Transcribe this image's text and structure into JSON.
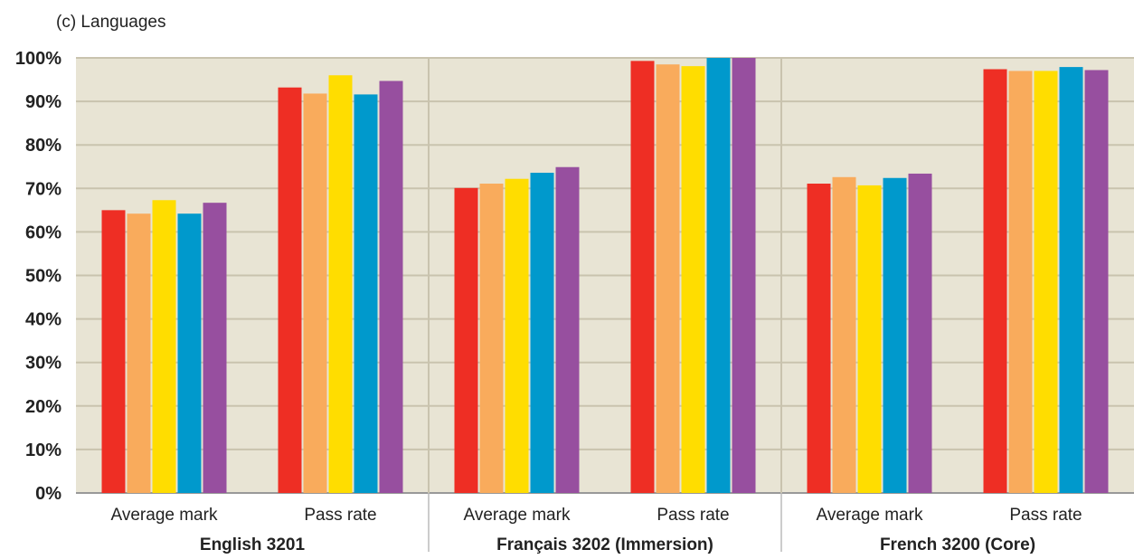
{
  "chart_data": {
    "type": "bar",
    "subtitle": "(c) Languages",
    "y_ticks": [
      "0%",
      "10%",
      "20%",
      "30%",
      "40%",
      "50%",
      "60%",
      "70%",
      "80%",
      "90%",
      "100%"
    ],
    "ylim": [
      0,
      100
    ],
    "y_unit": "%",
    "grid": true,
    "legend": "none",
    "groups": [
      {
        "label": "English 3201",
        "categories": [
          {
            "label": "Average mark",
            "values": [
              65,
              64.2,
              67.3,
              64.2,
              66.7
            ]
          },
          {
            "label": "Pass rate",
            "values": [
              93.2,
              91.8,
              96,
              91.6,
              94.7
            ]
          }
        ]
      },
      {
        "label": "Français 3202 (Immersion)",
        "categories": [
          {
            "label": "Average mark",
            "values": [
              70.1,
              71.1,
              72.2,
              73.6,
              74.9
            ]
          },
          {
            "label": "Pass rate",
            "values": [
              99.3,
              98.5,
              98.1,
              100,
              100
            ]
          }
        ]
      },
      {
        "label": "French 3200 (Core)",
        "categories": [
          {
            "label": "Average mark",
            "values": [
              71.1,
              72.6,
              70.7,
              72.4,
              73.4
            ]
          },
          {
            "label": "Pass rate",
            "values": [
              97.4,
              97,
              97,
              97.9,
              97.2
            ]
          }
        ]
      }
    ],
    "series_colors": [
      "#ee2e24",
      "#f9ab5c",
      "#ffdd00",
      "#0099cc",
      "#974f9f"
    ],
    "plot_background": "#e8e4d4",
    "gridline_color": "#c9c3ae"
  }
}
